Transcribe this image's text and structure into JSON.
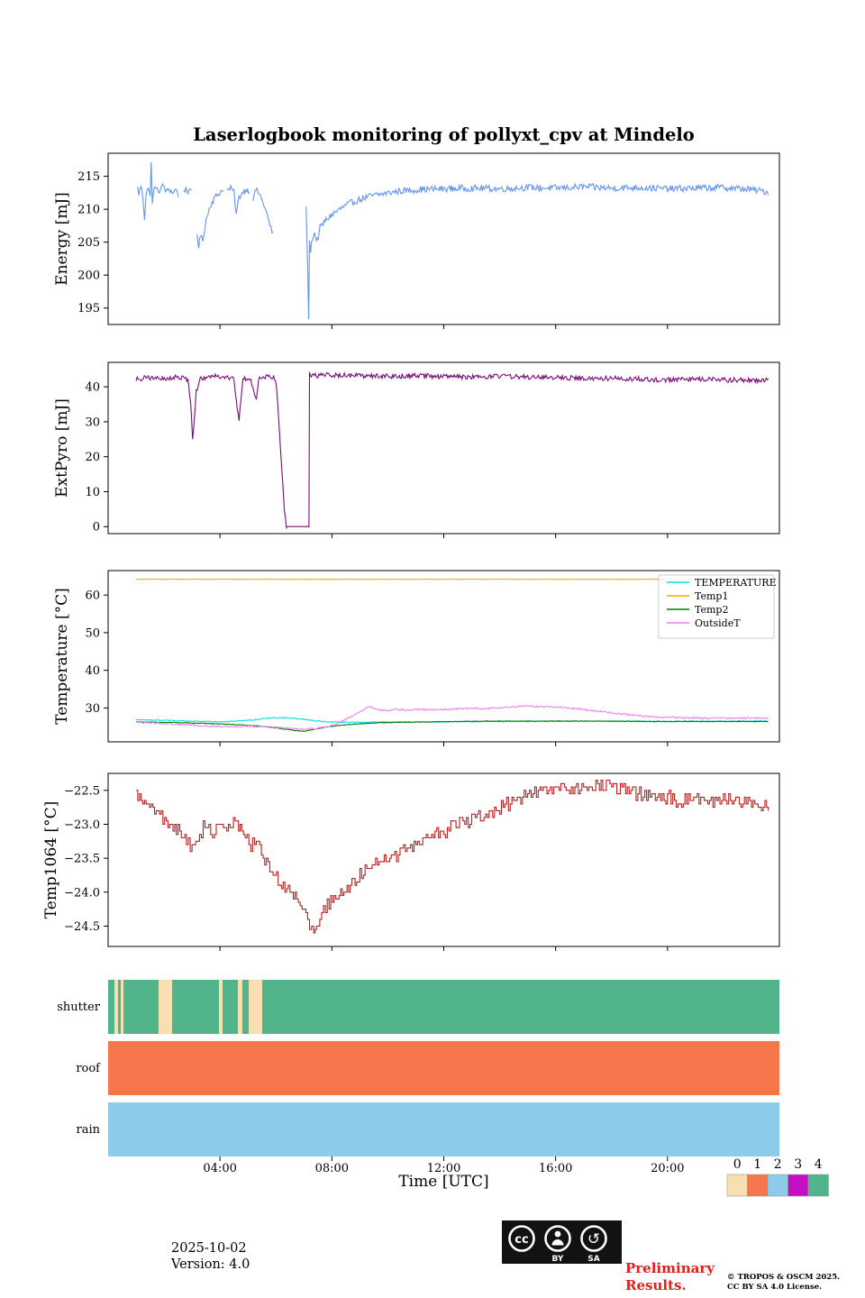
{
  "title": "Laserlogbook monitoring of pollyxt_cpv at Mindelo",
  "x_axis": {
    "label": "Time [UTC]",
    "lim": [
      0,
      24
    ],
    "ticks": [
      4,
      8,
      12,
      16,
      20
    ],
    "tick_labels": [
      "04:00",
      "08:00",
      "12:00",
      "16:00",
      "20:00"
    ]
  },
  "chart_data": [
    {
      "type": "line",
      "id": "energy",
      "ylabel": "Energy [mJ]",
      "ylim": [
        192.5,
        218.5
      ],
      "yticks": [
        195,
        200,
        205,
        210,
        215
      ],
      "ytick_labels": [
        "195",
        "200",
        "205",
        "210",
        "215"
      ],
      "series": [
        {
          "name": "Energy",
          "color": "#6495ed",
          "segments": [
            {
              "noise": 0.45,
              "x": [
                1.05,
                1.1,
                1.18,
                1.25,
                1.3,
                1.36,
                1.42,
                1.5,
                1.54,
                1.58,
                1.63,
                1.7,
                1.78,
                1.88,
                1.98,
                2.08,
                2.18,
                2.3,
                2.42,
                2.52
              ],
              "y": [
                213.2,
                212.4,
                213.6,
                211.5,
                208.6,
                212.6,
                213.0,
                212.4,
                217.2,
                210.6,
                212.8,
                213.6,
                212.4,
                213.2,
                213.6,
                212.6,
                213.1,
                212.5,
                213.0,
                212.2
              ]
            },
            {
              "noise": 0.4,
              "x": [
                2.7,
                2.78,
                2.88,
                2.98
              ],
              "y": [
                212.6,
                213.2,
                212.5,
                212.9
              ]
            },
            {
              "noise": 0.45,
              "x": [
                3.18,
                3.24,
                3.3,
                3.38,
                3.5,
                3.65,
                3.82,
                4.0,
                4.12
              ],
              "y": [
                206.2,
                204.4,
                206.0,
                205.2,
                208.3,
                210.6,
                211.8,
                212.6,
                213.0
              ]
            },
            {
              "noise": 0.4,
              "x": [
                4.25,
                4.38,
                4.5,
                4.58,
                4.68,
                4.82,
                4.95,
                5.05
              ],
              "y": [
                212.8,
                213.2,
                212.6,
                209.2,
                211.8,
                212.6,
                213.0,
                212.7
              ]
            },
            {
              "noise": 0.4,
              "x": [
                5.18,
                5.28,
                5.4,
                5.52,
                5.64,
                5.78,
                5.9
              ],
              "y": [
                211.6,
                213.0,
                212.4,
                211.2,
                209.8,
                207.6,
                206.2
              ]
            },
            {
              "noise": 0.5,
              "x": [
                7.08,
                7.14,
                7.17,
                7.2,
                7.24,
                7.3,
                7.38,
                7.48,
                7.58,
                7.72,
                7.9,
                8.1,
                8.35,
                8.65,
                9.0,
                9.4,
                9.9,
                10.5,
                11.2,
                12.0,
                13.0,
                14.0,
                15.0,
                16.0,
                17.0,
                18.0,
                19.0,
                20.0,
                21.0,
                22.0,
                23.0,
                23.6
              ],
              "y": [
                210.4,
                200.0,
                193.6,
                204.8,
                203.8,
                205.6,
                206.3,
                205.2,
                207.2,
                208.0,
                208.8,
                209.5,
                210.2,
                210.9,
                211.5,
                212.0,
                212.4,
                212.8,
                213.0,
                213.1,
                213.2,
                213.1,
                213.3,
                213.2,
                213.4,
                213.2,
                213.3,
                213.1,
                213.2,
                213.3,
                213.0,
                212.6
              ]
            }
          ]
        }
      ]
    },
    {
      "type": "line",
      "id": "extpyro",
      "ylabel": "ExtPyro [mJ]",
      "ylim": [
        -2,
        47
      ],
      "yticks": [
        0,
        10,
        20,
        30,
        40
      ],
      "ytick_labels": [
        "0",
        "10",
        "20",
        "30",
        "40"
      ],
      "series": [
        {
          "name": "ExtPyro",
          "color": "#7a0c7a",
          "segments": [
            {
              "noise": 0.7,
              "x": [
                1.0,
                1.4,
                1.9,
                2.4,
                2.85,
                2.95,
                3.02,
                3.08,
                3.15,
                3.3,
                3.6,
                3.9,
                4.2,
                4.5,
                4.62,
                4.68,
                4.74,
                4.82,
                4.95,
                5.1,
                5.22,
                5.3,
                5.38,
                5.55,
                5.75,
                5.95,
                6.02,
                6.1,
                6.2,
                6.3,
                6.38
              ],
              "y": [
                42.2,
                42.6,
                42.3,
                42.8,
                42.2,
                36.0,
                24.8,
                30.0,
                38.5,
                42.4,
                42.8,
                43.0,
                42.6,
                42.2,
                34.0,
                30.8,
                36.0,
                42.0,
                42.5,
                42.2,
                38.0,
                36.5,
                42.0,
                42.6,
                43.0,
                42.6,
                40.0,
                30.0,
                18.0,
                5.0,
                0.0
              ]
            },
            {
              "noise": 0,
              "x": [
                6.38,
                7.18
              ],
              "y": [
                0.0,
                0.0
              ]
            },
            {
              "noise": 0.7,
              "x": [
                7.18,
                7.2,
                7.5,
                8.0,
                9.0,
                10.0,
                11.0,
                12.0,
                13.0,
                14.0,
                15.0,
                16.0,
                17.0,
                18.0,
                19.0,
                20.0,
                21.0,
                22.0,
                23.0,
                23.6
              ],
              "y": [
                0.0,
                43.6,
                43.2,
                43.4,
                43.2,
                43.0,
                43.2,
                43.0,
                42.8,
                43.0,
                42.8,
                42.6,
                42.5,
                42.4,
                42.2,
                42.0,
                42.2,
                42.0,
                41.9,
                42.0
              ]
            }
          ]
        }
      ]
    },
    {
      "type": "line",
      "id": "temperature",
      "ylabel": "Temperature [°C]",
      "ylim": [
        21,
        66.5
      ],
      "yticks": [
        30,
        40,
        50,
        60
      ],
      "ytick_labels": [
        "30",
        "40",
        "50",
        "60"
      ],
      "legend": true,
      "series": [
        {
          "name": "TEMPERATURE",
          "color": "#00e0e0",
          "segments": [
            {
              "noise": 0.12,
              "x": [
                1.0,
                1.6,
                2.2,
                2.8,
                3.4,
                4.0,
                4.6,
                5.0,
                5.4,
                5.8,
                6.2,
                6.6,
                7.0,
                7.4,
                7.8,
                8.4,
                9.0,
                10.0,
                11.0,
                12.0,
                13.0,
                14.0,
                15.0,
                16.0,
                17.0,
                18.0,
                19.0,
                20.0,
                21.0,
                22.0,
                23.0,
                23.6
              ],
              "y": [
                26.9,
                26.8,
                26.7,
                26.5,
                26.4,
                26.3,
                26.5,
                26.7,
                27.0,
                27.3,
                27.4,
                27.3,
                27.0,
                26.6,
                26.3,
                26.2,
                26.2,
                26.3,
                26.3,
                26.3,
                26.4,
                26.4,
                26.4,
                26.5,
                26.5,
                26.4,
                26.5,
                26.4,
                26.5,
                26.5,
                26.5,
                26.5
              ]
            }
          ]
        },
        {
          "name": "Temp1",
          "color": "#ffa500",
          "segments": [
            {
              "noise": 0.04,
              "x": [
                1.0,
                23.6
              ],
              "y": [
                64.2,
                64.2
              ]
            }
          ]
        },
        {
          "name": "Temp2",
          "color": "#008000",
          "segments": [
            {
              "noise": 0.08,
              "x": [
                1.0,
                1.8,
                2.6,
                3.4,
                4.2,
                4.8,
                5.4,
                5.9,
                6.3,
                6.7,
                7.0,
                7.3,
                7.7,
                8.2,
                8.8,
                9.5,
                10.5,
                11.5,
                12.5,
                13.5,
                15.0,
                16.5,
                18.0,
                19.5,
                21.0,
                22.5,
                23.6
              ],
              "y": [
                26.3,
                26.2,
                26.1,
                25.9,
                25.7,
                25.5,
                25.2,
                24.8,
                24.4,
                24.0,
                23.8,
                24.2,
                24.8,
                25.3,
                25.7,
                26.0,
                26.2,
                26.3,
                26.4,
                26.5,
                26.5,
                26.5,
                26.5,
                26.4,
                26.4,
                26.4,
                26.4
              ]
            }
          ]
        },
        {
          "name": "OutsideT",
          "color": "#ee82ee",
          "segments": [
            {
              "noise": 0.22,
              "x": [
                1.0,
                1.8,
                2.6,
                3.2,
                3.8,
                4.4,
                5.0,
                5.5,
                6.0,
                6.5,
                7.0,
                7.5,
                7.9,
                8.2,
                8.5,
                8.8,
                9.1,
                9.35,
                9.6,
                9.9,
                10.3,
                10.7,
                11.1,
                11.5,
                12.0,
                12.5,
                13.0,
                13.5,
                14.0,
                14.5,
                15.0,
                15.4,
                15.8,
                16.2,
                16.6,
                17.0,
                17.5,
                18.0,
                18.5,
                19.0,
                19.6,
                20.4,
                21.2,
                22.0,
                22.8,
                23.6
              ],
              "y": [
                26.2,
                25.9,
                25.6,
                25.3,
                25.1,
                25.0,
                25.2,
                25.0,
                24.8,
                24.6,
                24.4,
                24.6,
                25.1,
                25.9,
                27.0,
                28.2,
                29.4,
                30.4,
                29.7,
                29.3,
                29.6,
                29.4,
                29.6,
                29.5,
                29.6,
                29.8,
                29.9,
                29.8,
                30.1,
                30.3,
                30.5,
                30.3,
                30.4,
                30.2,
                29.9,
                29.6,
                29.2,
                28.7,
                28.3,
                27.9,
                27.6,
                27.4,
                27.3,
                27.3,
                27.3,
                27.3
              ]
            }
          ]
        }
      ]
    },
    {
      "type": "line",
      "id": "temp1064",
      "ylabel": "Temp1064 [°C]",
      "ylim": [
        -24.8,
        -22.25
      ],
      "yticks": [
        -22.5,
        -23.0,
        -23.5,
        -24.0,
        -24.5
      ],
      "ytick_labels": [
        "−22.5",
        "−23.0",
        "−23.5",
        "−24.0",
        "−24.5"
      ],
      "series": [
        {
          "name": "Temp1064",
          "color": "#b22222",
          "step": true,
          "quantize": 0.05,
          "segments": [
            {
              "noise": 0.1,
              "dt": 0.06,
              "x": [
                1.0,
                1.3,
                1.6,
                1.9,
                2.2,
                2.5,
                2.8,
                3.0,
                3.2,
                3.4,
                3.6,
                3.8,
                4.0,
                4.3,
                4.6,
                4.9,
                5.1,
                5.3,
                5.6,
                5.9,
                6.2,
                6.5,
                6.8,
                7.0,
                7.2,
                7.35,
                7.5,
                7.7,
                7.9,
                8.2,
                8.6,
                9.0,
                9.5,
                10.0,
                10.5,
                11.0,
                11.5,
                12.0,
                12.5,
                13.0,
                13.5,
                14.0,
                14.5,
                15.0,
                15.5,
                16.0,
                16.5,
                17.0,
                17.5,
                18.0,
                18.5,
                19.0,
                19.5,
                20.0,
                20.5,
                21.0,
                21.5,
                22.0,
                22.5,
                23.0,
                23.6
              ],
              "y": [
                -22.6,
                -22.65,
                -22.8,
                -22.9,
                -23.0,
                -23.1,
                -23.25,
                -23.35,
                -23.2,
                -23.05,
                -23.1,
                -23.15,
                -23.0,
                -23.1,
                -22.95,
                -23.15,
                -23.3,
                -23.2,
                -23.5,
                -23.75,
                -23.9,
                -24.0,
                -24.15,
                -24.3,
                -24.5,
                -24.6,
                -24.5,
                -24.3,
                -24.15,
                -24.0,
                -23.9,
                -23.75,
                -23.6,
                -23.5,
                -23.4,
                -23.3,
                -23.2,
                -23.1,
                -23.0,
                -22.95,
                -22.85,
                -22.75,
                -22.65,
                -22.55,
                -22.5,
                -22.45,
                -22.5,
                -22.45,
                -22.4,
                -22.45,
                -22.5,
                -22.55,
                -22.6,
                -22.6,
                -22.65,
                -22.6,
                -22.65,
                -22.6,
                -22.65,
                -22.7,
                -22.7
              ]
            }
          ]
        }
      ]
    },
    {
      "type": "status",
      "id": "status",
      "value_colors": {
        "0": "#f7dfb2",
        "1": "#f5764a",
        "2": "#8cccea",
        "3": "#c410c4",
        "4": "#52b48b"
      },
      "rows": [
        {
          "label": "shutter",
          "segments": [
            [
              0,
              0.23,
              4
            ],
            [
              0.23,
              0.35,
              0
            ],
            [
              0.35,
              0.45,
              4
            ],
            [
              0.45,
              0.55,
              0
            ],
            [
              0.55,
              1.8,
              4
            ],
            [
              1.8,
              2.29,
              0
            ],
            [
              2.29,
              3.96,
              4
            ],
            [
              3.96,
              4.09,
              0
            ],
            [
              4.09,
              4.64,
              4
            ],
            [
              4.64,
              4.8,
              0
            ],
            [
              4.8,
              5.03,
              4
            ],
            [
              5.03,
              5.51,
              0
            ],
            [
              5.51,
              24,
              4
            ]
          ]
        },
        {
          "label": "roof",
          "segments": [
            [
              0,
              24,
              1
            ]
          ]
        },
        {
          "label": "rain",
          "segments": [
            [
              0,
              24,
              2
            ]
          ]
        }
      ],
      "colorbar": {
        "values": [
          "0",
          "1",
          "2",
          "3",
          "4"
        ]
      }
    }
  ],
  "footer": {
    "date": "2025-10-02",
    "version": "Version: 4.0",
    "preliminary_line1": "Preliminary",
    "preliminary_line2": "Results.",
    "copyright_line1": "© TROPOS & OSCM 2025.",
    "copyright_line2": "CC BY SA 4.0 License.",
    "cc_label": "cc",
    "cc_by": "BY",
    "cc_sa": "SA"
  }
}
